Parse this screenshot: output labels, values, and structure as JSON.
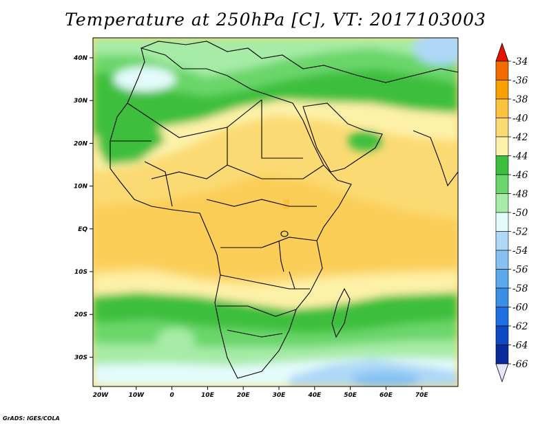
{
  "title": "Temperature at 250hPa [C], VT: 2017103003",
  "credit": "GrADS: IGES/COLA",
  "map": {
    "lat_labels": [
      "40N",
      "30N",
      "20N",
      "10N",
      "EQ",
      "10S",
      "20S",
      "30S"
    ],
    "lon_labels": [
      "20W",
      "10W",
      "0",
      "10E",
      "20E",
      "30E",
      "40E",
      "50E",
      "60E",
      "70E"
    ]
  },
  "colorbar": {
    "labels": [
      "-34",
      "-36",
      "-38",
      "-40",
      "-42",
      "-44",
      "-46",
      "-48",
      "-50",
      "-52",
      "-54",
      "-56",
      "-58",
      "-60",
      "-62",
      "-64",
      "-66"
    ],
    "colors": [
      "#e51400",
      "#f36a00",
      "#f8a100",
      "#fac23e",
      "#fbda73",
      "#fdf1a8",
      "#3cbf3c",
      "#6bd66b",
      "#a6eba6",
      "#e3fbfb",
      "#aed8f6",
      "#86c1f2",
      "#5ca8ec",
      "#3b8ee6",
      "#1e6fe0",
      "#0e49c4",
      "#0a2a9a",
      "#0d1670",
      "#e6e6fa"
    ]
  }
}
